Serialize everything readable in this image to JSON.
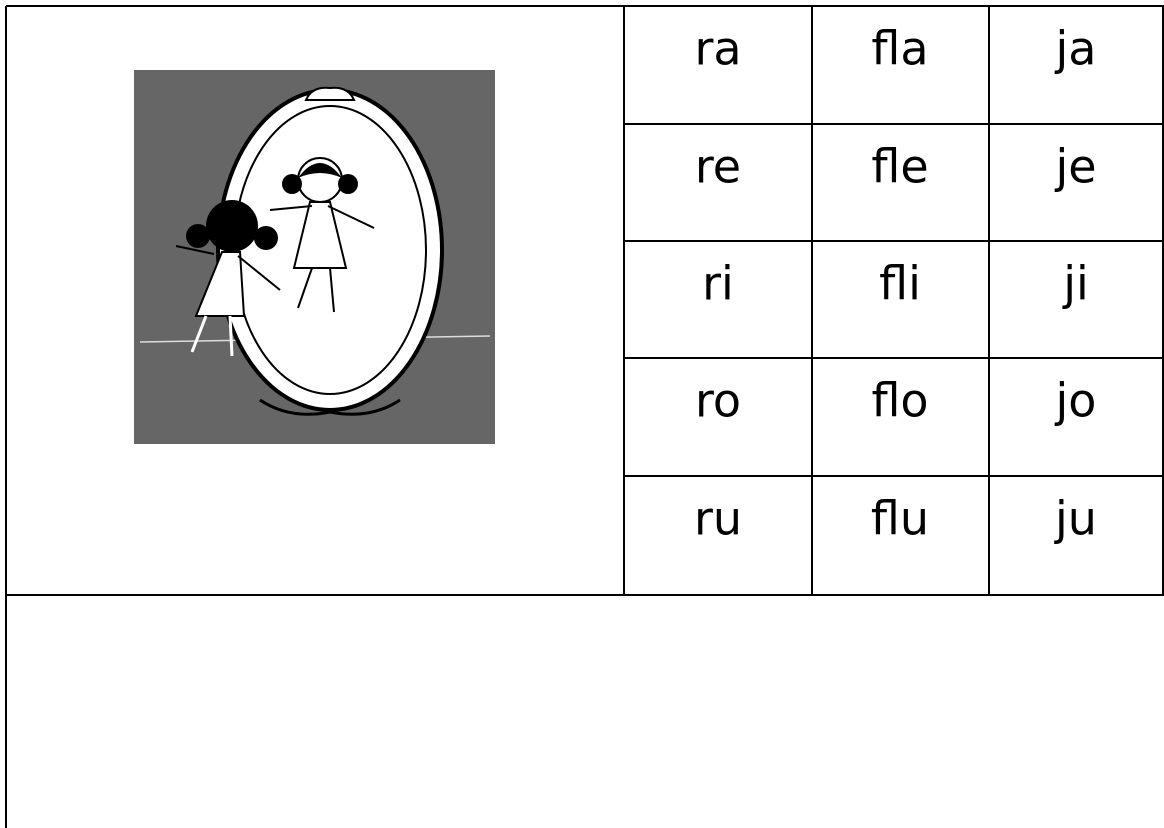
{
  "table": {
    "rows": [
      [
        "ra",
        "fla",
        "ja"
      ],
      [
        "re",
        "fle",
        "je"
      ],
      [
        "ri",
        "fli",
        "ji"
      ],
      [
        "ro",
        "flo",
        "jo"
      ],
      [
        "ru",
        "flu",
        "ju"
      ]
    ]
  }
}
